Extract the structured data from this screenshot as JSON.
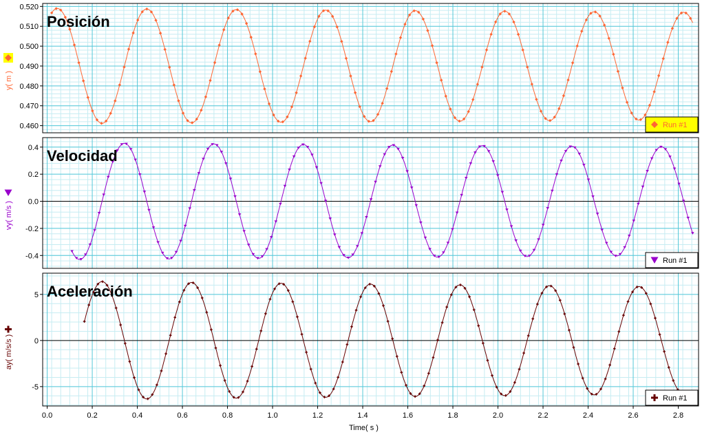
{
  "x_axis": {
    "label": "Time( s )",
    "range": [
      -0.02,
      2.89
    ],
    "ticks": [
      0.0,
      0.2,
      0.4,
      0.6,
      0.8,
      1.0,
      1.2,
      1.4,
      1.6,
      1.8,
      2.0,
      2.2,
      2.4,
      2.6,
      2.8
    ],
    "tick_labels": [
      "0.0",
      "0.2",
      "0.4",
      "0.6",
      "0.8",
      "1.0",
      "1.2",
      "1.4",
      "1.6",
      "1.8",
      "2.0",
      "2.2",
      "2.4",
      "2.6",
      "2.8"
    ]
  },
  "chart_data": [
    {
      "type": "line",
      "title": "Posición",
      "ylabel": "y( m )",
      "ylim": [
        0.4564,
        0.5215
      ],
      "yticks": [
        0.46,
        0.47,
        0.48,
        0.49,
        0.5,
        0.51,
        0.52
      ],
      "ytick_labels": [
        "0.460",
        "0.470",
        "0.480",
        "0.490",
        "0.500",
        "0.510",
        "0.520"
      ],
      "grid": true,
      "zero_line": false,
      "legend": "bottom-right",
      "legend_background": "#ffff00",
      "marker": "diamond",
      "color": "#ff6633",
      "model": {
        "function": "cos",
        "center": 0.49,
        "amplitude_start": 0.029,
        "amplitude_end": 0.027,
        "period": 0.397,
        "peak_time": 0.045,
        "t_start": 0.02,
        "t_end": 2.865,
        "sample_step": 0.0201
      },
      "series": [
        {
          "name": "Run #1",
          "x": [
            0.0,
            0.1,
            0.2,
            0.25,
            0.3,
            0.4,
            0.45,
            0.5,
            0.6,
            0.65,
            0.7,
            0.8,
            0.85,
            0.9,
            1.0,
            1.05,
            1.1,
            1.2,
            1.25,
            1.3,
            1.4,
            1.45,
            1.5,
            1.6,
            1.65,
            1.7,
            1.8,
            1.85,
            1.9,
            2.0,
            2.05,
            2.1,
            2.2,
            2.25,
            2.3,
            2.4,
            2.45,
            2.5,
            2.6,
            2.65,
            2.7,
            2.8,
            2.86
          ],
          "y": [
            0.517,
            0.477,
            0.463,
            0.461,
            0.469,
            0.508,
            0.519,
            0.512,
            0.467,
            0.461,
            0.47,
            0.509,
            0.519,
            0.511,
            0.467,
            0.461,
            0.469,
            0.508,
            0.518,
            0.511,
            0.467,
            0.461,
            0.469,
            0.508,
            0.518,
            0.511,
            0.468,
            0.462,
            0.469,
            0.507,
            0.518,
            0.511,
            0.468,
            0.462,
            0.47,
            0.507,
            0.517,
            0.511,
            0.468,
            0.462,
            0.47,
            0.506,
            0.474
          ]
        }
      ]
    },
    {
      "type": "line",
      "title": "Velocidad",
      "ylabel": "vy( m/s )",
      "ylim": [
        -0.495,
        0.47
      ],
      "yticks": [
        -0.4,
        -0.2,
        0.0,
        0.2,
        0.4
      ],
      "ytick_labels": [
        "-0.4",
        "-0.2",
        "0.0",
        "0.2",
        "0.4"
      ],
      "grid": true,
      "zero_line": true,
      "legend": "bottom-right",
      "legend_background": "#ffffff",
      "marker": "triangle-down",
      "color": "#9900cc",
      "model": {
        "function": "sin",
        "amplitude_start": 0.43,
        "amplitude_end": 0.4,
        "period": 0.397,
        "peak_time": 0.045,
        "t_start": 0.11,
        "t_end": 2.865,
        "sample_step": 0.0201
      },
      "series": [
        {
          "name": "Run #1",
          "x": [
            0.11,
            0.15,
            0.25,
            0.35,
            0.4,
            0.45,
            0.55,
            0.6,
            0.7,
            0.75,
            0.85,
            0.9,
            0.95,
            1.05,
            1.1,
            1.15,
            1.25,
            1.3,
            1.35,
            1.45,
            1.5,
            1.55,
            1.65,
            1.7,
            1.75,
            1.85,
            1.9,
            1.95,
            2.05,
            2.1,
            2.15,
            2.25,
            2.3,
            2.35,
            2.45,
            2.5,
            2.55,
            2.65,
            2.7,
            2.75,
            2.86
          ],
          "y": [
            -0.39,
            -0.43,
            0.17,
            0.43,
            0.21,
            -0.27,
            -0.42,
            -0.18,
            0.34,
            0.42,
            -0.06,
            -0.36,
            -0.4,
            0.09,
            0.4,
            0.35,
            -0.2,
            -0.4,
            -0.28,
            0.21,
            0.41,
            0.24,
            -0.31,
            -0.4,
            -0.17,
            0.34,
            0.41,
            0.1,
            -0.38,
            -0.38,
            -0.04,
            0.4,
            0.36,
            -0.07,
            -0.4,
            -0.33,
            0.12,
            0.4,
            0.31,
            -0.16,
            -0.4
          ]
        }
      ]
    },
    {
      "type": "line",
      "title": "Aceleración",
      "ylabel": "ay( m/s/s )",
      "ylim": [
        -7.1,
        7.3
      ],
      "yticks": [
        -5,
        0,
        5
      ],
      "ytick_labels": [
        "-5",
        "0",
        "5"
      ],
      "grid": true,
      "zero_line": true,
      "legend": "bottom-right",
      "legend_background": "#ffffff",
      "marker": "plus",
      "color": "#660000",
      "model": {
        "function": "-cos",
        "amplitude_start": 6.4,
        "amplitude_end": 5.8,
        "period": 0.397,
        "peak_time": 0.045,
        "t_start": 0.165,
        "t_end": 2.845,
        "sample_step": 0.0201
      },
      "series": [
        {
          "name": "Run #1",
          "x": [
            0.165,
            0.2,
            0.25,
            0.3,
            0.35,
            0.4,
            0.45,
            0.5,
            0.55,
            0.6,
            0.65,
            0.7,
            0.75,
            0.8,
            0.85,
            0.9,
            0.95,
            1.0,
            1.05,
            1.1,
            1.2,
            1.25,
            1.3,
            1.4,
            1.45,
            1.5,
            1.6,
            1.65,
            1.7,
            1.8,
            1.85,
            1.9,
            2.0,
            2.05,
            2.1,
            2.2,
            2.25,
            2.3,
            2.4,
            2.45,
            2.5,
            2.6,
            2.65,
            2.7,
            2.8,
            2.845
          ],
          "y": [
            2.4,
            5.0,
            6.3,
            4.0,
            -0.2,
            -4.6,
            -6.2,
            -4.3,
            0.6,
            5.0,
            6.2,
            3.3,
            -1.5,
            -5.6,
            -5.7,
            -1.9,
            3.2,
            6.1,
            5.3,
            0.9,
            -5.6,
            -5.8,
            -2.3,
            5.0,
            6.0,
            2.9,
            -4.4,
            -5.8,
            -3.6,
            4.6,
            5.8,
            3.3,
            -5.5,
            -5.4,
            -1.1,
            5.6,
            5.7,
            1.6,
            -5.8,
            -4.9,
            0.2,
            5.8,
            5.0,
            -0.4,
            -5.6,
            -4.3
          ]
        }
      ]
    }
  ]
}
